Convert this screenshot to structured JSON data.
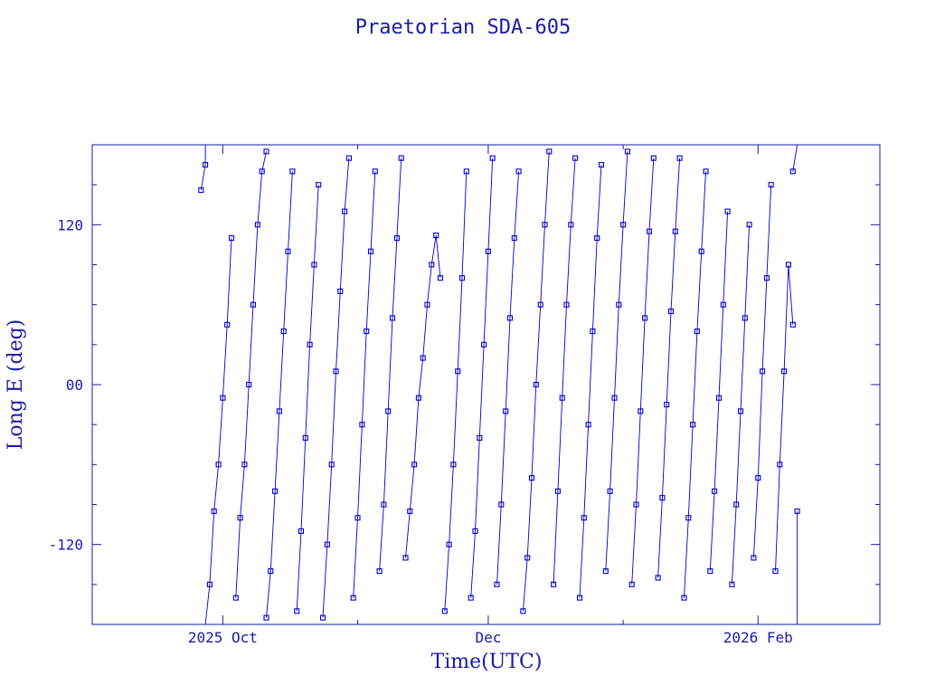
{
  "chart_data": {
    "type": "scatter",
    "title": "Praetorian SDA-605",
    "xlabel": "Time(UTC)",
    "ylabel": "Long E (deg)",
    "xlim": [
      "2025-09-01",
      "2026-03-01"
    ],
    "ylim": [
      -180,
      180
    ],
    "x_major_ticks": [
      "2025-10-01",
      "2025-12-01",
      "2026-02-01"
    ],
    "x_tick_labels": [
      "2025 Oct",
      "Dec",
      "2026 Feb"
    ],
    "x_minor_ticks": [
      "2025-09-01",
      "2025-11-01",
      "2026-01-01",
      "2026-03-01"
    ],
    "y_major_ticks": [
      -120,
      0,
      120
    ],
    "y_tick_labels": [
      "-120",
      "00",
      "120"
    ],
    "y_minor_step": 30,
    "grid": false,
    "legend": "none",
    "line_color": "#0000cc",
    "axis_color": "#1a1aa6",
    "series": [
      {
        "values_by_segment": [
          {
            "x": [
              "2025-09-26",
              "2025-09-27",
              "2025-09-27"
            ],
            "y": [
              146,
              165,
              180
            ]
          },
          {
            "x": [
              "2025-09-27",
              "2025-09-28",
              "2025-09-29",
              "2025-09-30",
              "2025-10-01",
              "2025-10-02",
              "2025-10-03"
            ],
            "y": [
              -180,
              -150,
              -95,
              -60,
              -10,
              45,
              110
            ]
          },
          {
            "x": [
              "2025-10-04",
              "2025-10-05",
              "2025-10-06",
              "2025-10-07",
              "2025-10-08",
              "2025-10-09",
              "2025-10-10",
              "2025-10-11"
            ],
            "y": [
              -160,
              -100,
              -60,
              0,
              60,
              120,
              160,
              175
            ]
          },
          {
            "x": [
              "2025-10-11",
              "2025-10-12",
              "2025-10-13",
              "2025-10-14",
              "2025-10-15",
              "2025-10-16",
              "2025-10-17"
            ],
            "y": [
              -175,
              -140,
              -80,
              -20,
              40,
              100,
              160
            ]
          },
          {
            "x": [
              "2025-10-18",
              "2025-10-19",
              "2025-10-20",
              "2025-10-21",
              "2025-10-22",
              "2025-10-23"
            ],
            "y": [
              -170,
              -110,
              -40,
              30,
              90,
              150
            ]
          },
          {
            "x": [
              "2025-10-24",
              "2025-10-25",
              "2025-10-26",
              "2025-10-27",
              "2025-10-28",
              "2025-10-29",
              "2025-10-30"
            ],
            "y": [
              -175,
              -120,
              -60,
              10,
              70,
              130,
              170
            ]
          },
          {
            "x": [
              "2025-10-31",
              "2025-11-01",
              "2025-11-02",
              "2025-11-03",
              "2025-11-04",
              "2025-11-05"
            ],
            "y": [
              -160,
              -100,
              -30,
              40,
              100,
              160
            ]
          },
          {
            "x": [
              "2025-11-06",
              "2025-11-07",
              "2025-11-08",
              "2025-11-09",
              "2025-11-10",
              "2025-11-11"
            ],
            "y": [
              -140,
              -90,
              -20,
              50,
              110,
              170
            ]
          },
          {
            "x": [
              "2025-11-12",
              "2025-11-13",
              "2025-11-14",
              "2025-11-15",
              "2025-11-16",
              "2025-11-17",
              "2025-11-18",
              "2025-11-19",
              "2025-11-20"
            ],
            "y": [
              -130,
              -95,
              -60,
              -10,
              20,
              60,
              90,
              112,
              80
            ]
          },
          {
            "x": [
              "2025-11-21",
              "2025-11-22",
              "2025-11-23",
              "2025-11-24",
              "2025-11-25",
              "2025-11-26"
            ],
            "y": [
              -170,
              -120,
              -60,
              10,
              80,
              160
            ]
          },
          {
            "x": [
              "2025-11-27",
              "2025-11-28",
              "2025-11-29",
              "2025-11-30",
              "2025-12-01",
              "2025-12-02"
            ],
            "y": [
              -160,
              -110,
              -40,
              30,
              100,
              170
            ]
          },
          {
            "x": [
              "2025-12-03",
              "2025-12-04",
              "2025-12-05",
              "2025-12-06",
              "2025-12-07",
              "2025-12-08"
            ],
            "y": [
              -150,
              -90,
              -20,
              50,
              110,
              160
            ]
          },
          {
            "x": [
              "2025-12-09",
              "2025-12-10",
              "2025-12-11",
              "2025-12-12",
              "2025-12-13",
              "2025-12-14",
              "2025-12-15"
            ],
            "y": [
              -170,
              -130,
              -70,
              0,
              60,
              120,
              175
            ]
          },
          {
            "x": [
              "2025-12-16",
              "2025-12-17",
              "2025-12-18",
              "2025-12-19",
              "2025-12-20",
              "2025-12-21"
            ],
            "y": [
              -150,
              -80,
              -10,
              60,
              120,
              170
            ]
          },
          {
            "x": [
              "2025-12-22",
              "2025-12-23",
              "2025-12-24",
              "2025-12-25",
              "2025-12-26",
              "2025-12-27"
            ],
            "y": [
              -160,
              -100,
              -30,
              40,
              110,
              165
            ]
          },
          {
            "x": [
              "2025-12-28",
              "2025-12-29",
              "2025-12-30",
              "2025-12-31",
              "2026-01-01",
              "2026-01-02"
            ],
            "y": [
              -140,
              -80,
              -10,
              60,
              120,
              175
            ]
          },
          {
            "x": [
              "2026-01-03",
              "2026-01-04",
              "2026-01-05",
              "2026-01-06",
              "2026-01-07",
              "2026-01-08"
            ],
            "y": [
              -150,
              -90,
              -20,
              50,
              115,
              170
            ]
          },
          {
            "x": [
              "2026-01-09",
              "2026-01-10",
              "2026-01-11",
              "2026-01-12",
              "2026-01-13",
              "2026-01-14"
            ],
            "y": [
              -145,
              -85,
              -15,
              55,
              115,
              170
            ]
          },
          {
            "x": [
              "2026-01-15",
              "2026-01-16",
              "2026-01-17",
              "2026-01-18",
              "2026-01-19",
              "2026-01-20"
            ],
            "y": [
              -160,
              -100,
              -30,
              40,
              100,
              160
            ]
          },
          {
            "x": [
              "2026-01-21",
              "2026-01-22",
              "2026-01-23",
              "2026-01-24",
              "2026-01-25"
            ],
            "y": [
              -140,
              -80,
              -10,
              60,
              130
            ]
          },
          {
            "x": [
              "2026-01-26",
              "2026-01-27",
              "2026-01-28",
              "2026-01-29",
              "2026-01-30"
            ],
            "y": [
              -150,
              -90,
              -20,
              50,
              120
            ]
          },
          {
            "x": [
              "2026-01-31",
              "2026-02-01",
              "2026-02-02",
              "2026-02-03",
              "2026-02-04"
            ],
            "y": [
              -130,
              -70,
              10,
              80,
              150
            ]
          },
          {
            "x": [
              "2026-02-05",
              "2026-02-06",
              "2026-02-07",
              "2026-02-08",
              "2026-02-09"
            ],
            "y": [
              -140,
              -60,
              10,
              90,
              45
            ]
          },
          {
            "x": [
              "2026-02-09",
              "2026-02-10"
            ],
            "y": [
              160,
              180
            ]
          },
          {
            "x": [
              "2026-02-10",
              "2026-02-10"
            ],
            "y": [
              -180,
              -95
            ]
          }
        ]
      }
    ]
  }
}
